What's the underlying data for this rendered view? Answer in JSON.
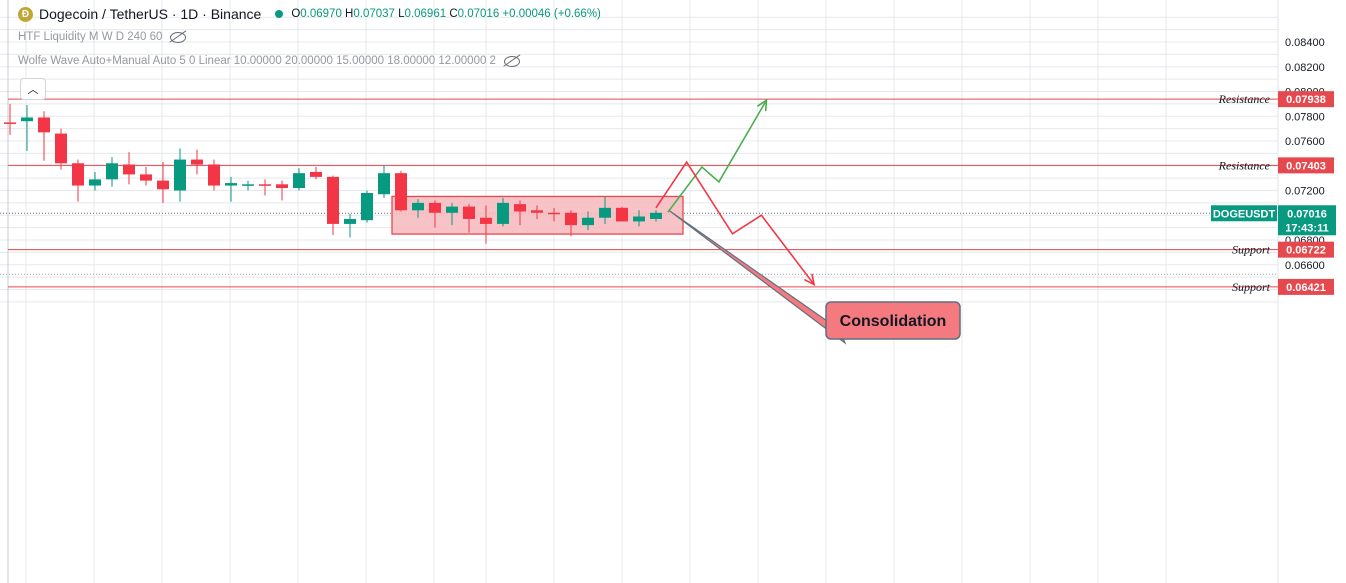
{
  "header": {
    "coin_icon": "dogecoin-icon",
    "symbol": "Dogecoin / TetherUS · 1D · Binance",
    "ohlc": {
      "o_label": "O",
      "o": "0.06970",
      "h_label": "H",
      "h": "0.07037",
      "l_label": "L",
      "l": "0.06961",
      "c_label": "C",
      "c": "0.07016",
      "change": "+0.00046 (+0.66%)"
    }
  },
  "indicators": [
    {
      "label": "HTF Liquidity M W D 240 60",
      "icon": "eye-hidden-icon"
    },
    {
      "label": "Wolfe Wave Auto+Manual Auto 5 0 Linear 10.00000 20.00000 15.00000 18.00000 12.00000 2",
      "icon": "eye-hidden-icon"
    }
  ],
  "collapse_icon": "chevron-up-icon",
  "colors": {
    "up": "#089981",
    "down": "#f23645",
    "level_line": "#e5484d",
    "box_fill": "#f7b9bd",
    "box_stroke": "#e5484d",
    "arrow_green": "#4caf50",
    "arrow_red": "#f23645",
    "grid": "#e6e8ec"
  },
  "chart_data": {
    "type": "candlestick",
    "ylim": [
      0.0628,
      0.0852
    ],
    "y_ticks": [
      "0.08400",
      "0.08200",
      "0.08000",
      "0.07800",
      "0.07600",
      "0.07200",
      "0.06800",
      "0.06600"
    ],
    "grid": true,
    "candles": [
      {
        "o": 0.0775,
        "h": 0.079,
        "l": 0.0765,
        "c": 0.0774
      },
      {
        "o": 0.0776,
        "h": 0.0789,
        "l": 0.0752,
        "c": 0.0779
      },
      {
        "o": 0.0779,
        "h": 0.0784,
        "l": 0.0744,
        "c": 0.0767
      },
      {
        "o": 0.0766,
        "h": 0.077,
        "l": 0.0737,
        "c": 0.0742
      },
      {
        "o": 0.0742,
        "h": 0.0745,
        "l": 0.0711,
        "c": 0.0724
      },
      {
        "o": 0.0724,
        "h": 0.0735,
        "l": 0.072,
        "c": 0.0729
      },
      {
        "o": 0.0729,
        "h": 0.0747,
        "l": 0.0723,
        "c": 0.0742
      },
      {
        "o": 0.0741,
        "h": 0.0751,
        "l": 0.0725,
        "c": 0.0733
      },
      {
        "o": 0.0733,
        "h": 0.0739,
        "l": 0.0724,
        "c": 0.0728
      },
      {
        "o": 0.0728,
        "h": 0.0743,
        "l": 0.071,
        "c": 0.0721
      },
      {
        "o": 0.072,
        "h": 0.0754,
        "l": 0.0711,
        "c": 0.0745
      },
      {
        "o": 0.0745,
        "h": 0.0753,
        "l": 0.0733,
        "c": 0.0741
      },
      {
        "o": 0.0741,
        "h": 0.0745,
        "l": 0.072,
        "c": 0.0724
      },
      {
        "o": 0.0724,
        "h": 0.0731,
        "l": 0.0711,
        "c": 0.0726
      },
      {
        "o": 0.0725,
        "h": 0.0728,
        "l": 0.072,
        "c": 0.0725
      },
      {
        "o": 0.0725,
        "h": 0.0729,
        "l": 0.0716,
        "c": 0.0724
      },
      {
        "o": 0.0725,
        "h": 0.0728,
        "l": 0.0712,
        "c": 0.0722
      },
      {
        "o": 0.0722,
        "h": 0.0738,
        "l": 0.072,
        "c": 0.0734
      },
      {
        "o": 0.0735,
        "h": 0.0739,
        "l": 0.0729,
        "c": 0.0731
      },
      {
        "o": 0.0731,
        "h": 0.0732,
        "l": 0.0684,
        "c": 0.0693
      },
      {
        "o": 0.0693,
        "h": 0.0701,
        "l": 0.0682,
        "c": 0.0697
      },
      {
        "o": 0.0696,
        "h": 0.072,
        "l": 0.0694,
        "c": 0.0718
      },
      {
        "o": 0.0717,
        "h": 0.074,
        "l": 0.0714,
        "c": 0.0734
      },
      {
        "o": 0.0734,
        "h": 0.0736,
        "l": 0.0703,
        "c": 0.0704
      },
      {
        "o": 0.0704,
        "h": 0.0713,
        "l": 0.0698,
        "c": 0.071
      },
      {
        "o": 0.071,
        "h": 0.0712,
        "l": 0.069,
        "c": 0.0702
      },
      {
        "o": 0.0702,
        "h": 0.071,
        "l": 0.0692,
        "c": 0.0707
      },
      {
        "o": 0.0707,
        "h": 0.0709,
        "l": 0.0686,
        "c": 0.0697
      },
      {
        "o": 0.0698,
        "h": 0.0708,
        "l": 0.0677,
        "c": 0.0693
      },
      {
        "o": 0.0693,
        "h": 0.0714,
        "l": 0.0691,
        "c": 0.071
      },
      {
        "o": 0.0709,
        "h": 0.0712,
        "l": 0.0692,
        "c": 0.0703
      },
      {
        "o": 0.0704,
        "h": 0.0708,
        "l": 0.0697,
        "c": 0.0702
      },
      {
        "o": 0.0702,
        "h": 0.0706,
        "l": 0.0695,
        "c": 0.0701
      },
      {
        "o": 0.0702,
        "h": 0.0704,
        "l": 0.0683,
        "c": 0.0692
      },
      {
        "o": 0.0692,
        "h": 0.0703,
        "l": 0.0688,
        "c": 0.0698
      },
      {
        "o": 0.0698,
        "h": 0.0715,
        "l": 0.0693,
        "c": 0.0706
      },
      {
        "o": 0.0706,
        "h": 0.0707,
        "l": 0.0695,
        "c": 0.0695
      },
      {
        "o": 0.0695,
        "h": 0.0704,
        "l": 0.0691,
        "c": 0.0699
      },
      {
        "o": 0.0697,
        "h": 0.0704,
        "l": 0.0695,
        "c": 0.0702
      }
    ],
    "levels": [
      {
        "name": "Resistance",
        "value": 0.07938,
        "label": "0.07938"
      },
      {
        "name": "Resistance",
        "value": 0.07403,
        "label": "0.07403"
      },
      {
        "name": "Support",
        "value": 0.06722,
        "label": "0.06722"
      },
      {
        "name": "Support",
        "value": 0.06421,
        "label": "0.06421"
      }
    ],
    "current_price": {
      "symbol": "DOGEUSDT",
      "price": "0.07016",
      "value": 0.07016,
      "countdown": "17:43:11"
    },
    "consolidation": {
      "label": "Consolidation",
      "bar_start": 23,
      "bar_end": 39,
      "price_low": 0.06848,
      "price_high": 0.07152
    },
    "projection_up": [
      [
        38.7,
        0.07025
      ],
      [
        40.7,
        0.0739
      ],
      [
        41.7,
        0.0727
      ],
      [
        44.5,
        0.0793
      ]
    ],
    "projection_down": [
      [
        38.0,
        0.0706
      ],
      [
        39.8,
        0.0743
      ],
      [
        42.5,
        0.0685
      ],
      [
        44.2,
        0.07
      ],
      [
        47.3,
        0.0644
      ]
    ]
  }
}
